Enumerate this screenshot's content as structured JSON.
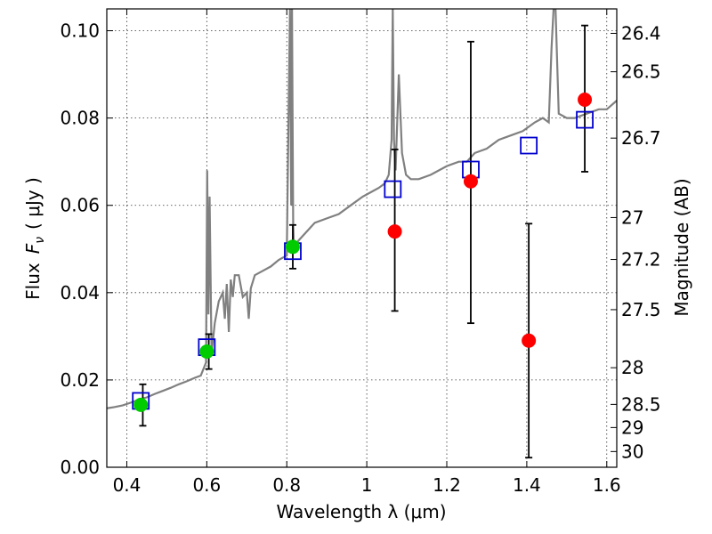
{
  "chart_data": {
    "type": "scatter",
    "xlabel": "Wavelength  λ (μm)",
    "ylabel_text": "Flux",
    "ylabel_symbol": "F",
    "ylabel_subscript": "ν",
    "ylabel_unit": "( μJy )",
    "y2label": "Magnitude (AB)",
    "xlim": [
      0.35,
      1.625
    ],
    "ylim": [
      0.0,
      0.105
    ],
    "grid": true,
    "x_ticks": [
      {
        "value": 0.4,
        "label": "0.4"
      },
      {
        "value": 0.6,
        "label": "0.6"
      },
      {
        "value": 0.8,
        "label": "0.8"
      },
      {
        "value": 1.0,
        "label": "1"
      },
      {
        "value": 1.2,
        "label": "1.2"
      },
      {
        "value": 1.4,
        "label": "1.4"
      },
      {
        "value": 1.6,
        "label": "1.6"
      }
    ],
    "y_ticks": [
      {
        "value": 0.0,
        "label": "0.00"
      },
      {
        "value": 0.02,
        "label": "0.02"
      },
      {
        "value": 0.04,
        "label": "0.04"
      },
      {
        "value": 0.06,
        "label": "0.06"
      },
      {
        "value": 0.08,
        "label": "0.08"
      },
      {
        "value": 0.1,
        "label": "0.10"
      }
    ],
    "mag_ticks": [
      {
        "label": "26.4",
        "flux": 0.0994
      },
      {
        "label": "26.5",
        "flux": 0.0906
      },
      {
        "label": "26.7",
        "flux": 0.0754
      },
      {
        "label": "27",
        "flux": 0.0572
      },
      {
        "label": "27.2",
        "flux": 0.0476
      },
      {
        "label": "27.5",
        "flux": 0.0361
      },
      {
        "label": "28",
        "flux": 0.0228
      },
      {
        "label": "28.5",
        "flux": 0.0144
      },
      {
        "label": "29",
        "flux": 0.0091
      },
      {
        "label": "30",
        "flux": 0.0036
      }
    ],
    "spectrum": {
      "color": "#808080",
      "x": [
        0.35,
        0.37,
        0.39,
        0.41,
        0.43,
        0.45,
        0.47,
        0.49,
        0.51,
        0.53,
        0.55,
        0.57,
        0.585,
        0.598,
        0.601,
        0.604,
        0.607,
        0.612,
        0.62,
        0.63,
        0.64,
        0.645,
        0.65,
        0.655,
        0.66,
        0.665,
        0.67,
        0.68,
        0.69,
        0.7,
        0.705,
        0.71,
        0.72,
        0.74,
        0.76,
        0.78,
        0.8,
        0.808,
        0.811,
        0.813,
        0.816,
        0.818,
        0.822,
        0.83,
        0.85,
        0.87,
        0.9,
        0.93,
        0.96,
        0.99,
        1.01,
        1.03,
        1.045,
        1.055,
        1.062,
        1.065,
        1.068,
        1.072,
        1.08,
        1.088,
        1.092,
        1.098,
        1.11,
        1.13,
        1.16,
        1.2,
        1.23,
        1.25,
        1.27,
        1.3,
        1.33,
        1.36,
        1.39,
        1.42,
        1.44,
        1.455,
        1.462,
        1.467,
        1.472,
        1.48,
        1.5,
        1.52,
        1.55,
        1.58,
        1.6,
        1.625
      ],
      "y": [
        0.0135,
        0.0138,
        0.0142,
        0.0148,
        0.0155,
        0.016,
        0.0168,
        0.0175,
        0.0182,
        0.019,
        0.0197,
        0.0205,
        0.021,
        0.024,
        0.068,
        0.035,
        0.062,
        0.026,
        0.033,
        0.038,
        0.04,
        0.034,
        0.042,
        0.031,
        0.043,
        0.039,
        0.044,
        0.044,
        0.039,
        0.04,
        0.034,
        0.041,
        0.044,
        0.045,
        0.046,
        0.0475,
        0.0485,
        0.105,
        0.06,
        0.105,
        0.056,
        0.05,
        0.051,
        0.052,
        0.054,
        0.056,
        0.057,
        0.058,
        0.06,
        0.062,
        0.063,
        0.064,
        0.065,
        0.067,
        0.075,
        0.105,
        0.075,
        0.068,
        0.09,
        0.072,
        0.07,
        0.067,
        0.066,
        0.066,
        0.067,
        0.069,
        0.07,
        0.07,
        0.072,
        0.073,
        0.075,
        0.076,
        0.077,
        0.079,
        0.08,
        0.079,
        0.096,
        0.105,
        0.105,
        0.081,
        0.08,
        0.08,
        0.081,
        0.082,
        0.082,
        0.084
      ]
    },
    "model_points": {
      "color": "#0000cc",
      "x": [
        0.435,
        0.6,
        0.815,
        1.065,
        1.26,
        1.405,
        1.545
      ],
      "y": [
        0.0152,
        0.0275,
        0.0495,
        0.0637,
        0.0682,
        0.0737,
        0.0796
      ]
    },
    "green_points": {
      "color": "#00cc00",
      "x": [
        0.435,
        0.6,
        0.815
      ],
      "y": [
        0.0143,
        0.0265,
        0.0505
      ]
    },
    "red_points": {
      "color": "#ff0000",
      "x": [
        1.07,
        1.26,
        1.405,
        1.545
      ],
      "y": [
        0.054,
        0.0655,
        0.029,
        0.0842
      ]
    },
    "error_bars": [
      {
        "x": 0.44,
        "low": 0.0095,
        "high": 0.019
      },
      {
        "x": 0.605,
        "low": 0.0225,
        "high": 0.0305
      },
      {
        "x": 0.815,
        "low": 0.0455,
        "high": 0.0555
      },
      {
        "x": 1.07,
        "low": 0.0358,
        "high": 0.0728
      },
      {
        "x": 1.26,
        "low": 0.033,
        "high": 0.0975
      },
      {
        "x": 1.405,
        "low": 0.0022,
        "high": 0.0558
      },
      {
        "x": 1.545,
        "low": 0.0677,
        "high": 0.1012
      }
    ]
  }
}
